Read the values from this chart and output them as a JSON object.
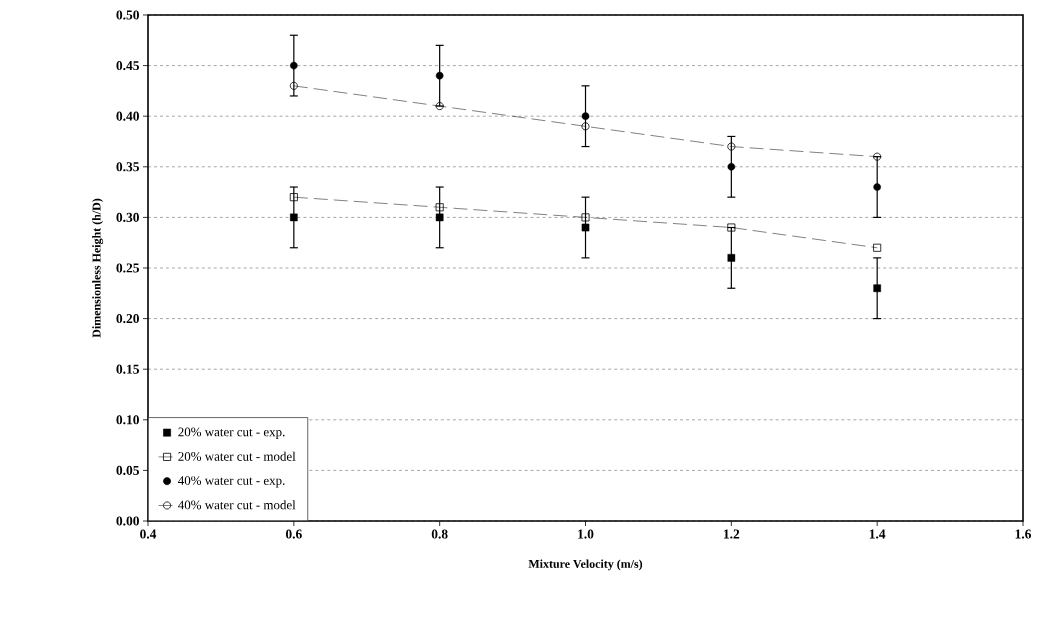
{
  "chart_data": {
    "type": "scatter",
    "xlabel": "Mixture Velocity (m/s)",
    "ylabel": "Dimensionless Height (h/D)",
    "x": [
      0.6,
      0.8,
      1.0,
      1.2,
      1.4
    ],
    "series": [
      {
        "name": "20% water cut - exp.",
        "marker": "square",
        "color": "#000000",
        "values": [
          0.3,
          0.3,
          0.29,
          0.26,
          0.23
        ],
        "errors": [
          0.03,
          0.03,
          0.03,
          0.03,
          0.03
        ]
      },
      {
        "name": "20% water cut - model",
        "type": "line",
        "marker": "square",
        "line_style": "dashed",
        "color": "#000000",
        "values": [
          0.32,
          0.31,
          0.3,
          0.29,
          0.27
        ]
      },
      {
        "name": "40% water cut - exp.",
        "marker": "circle",
        "color": "#000000",
        "values": [
          0.45,
          0.44,
          0.4,
          0.35,
          0.33
        ],
        "errors": [
          0.03,
          0.03,
          0.03,
          0.03,
          0.03
        ]
      },
      {
        "name": "40% water cut - model",
        "type": "line",
        "marker": "circle",
        "line_style": "dashed",
        "color": "#000000",
        "values": [
          0.43,
          0.41,
          0.39,
          0.37,
          0.36
        ]
      }
    ],
    "xlim": [
      0.4,
      1.6
    ],
    "xticks": [
      {
        "value": 0.4,
        "label": "0.4"
      },
      {
        "value": 0.6,
        "label": "0.6"
      },
      {
        "value": 0.8,
        "label": "0.8"
      },
      {
        "value": 1.0,
        "label": "1.0"
      },
      {
        "value": 1.2,
        "label": "1.2"
      },
      {
        "value": 1.4,
        "label": "1.4"
      },
      {
        "value": 1.6,
        "label": "1.6"
      }
    ],
    "ylim": [
      0,
      0.5
    ],
    "yticks": [
      {
        "value": 0,
        "label": "0.00"
      },
      {
        "value": 0.05,
        "label": "0.05"
      },
      {
        "value": 0.1,
        "label": "0.10"
      },
      {
        "value": 0.15,
        "label": "0.15"
      },
      {
        "value": 0.2,
        "label": "0.20"
      },
      {
        "value": 0.25,
        "label": "0.25"
      },
      {
        "value": 0.3,
        "label": "0.30"
      },
      {
        "value": 0.35,
        "label": "0.35"
      },
      {
        "value": 0.4,
        "label": "0.40"
      },
      {
        "value": 0.45,
        "label": "0.45"
      },
      {
        "value": 0.5,
        "label": "0.50"
      }
    ],
    "grid": "y",
    "legend": "bottom left"
  }
}
